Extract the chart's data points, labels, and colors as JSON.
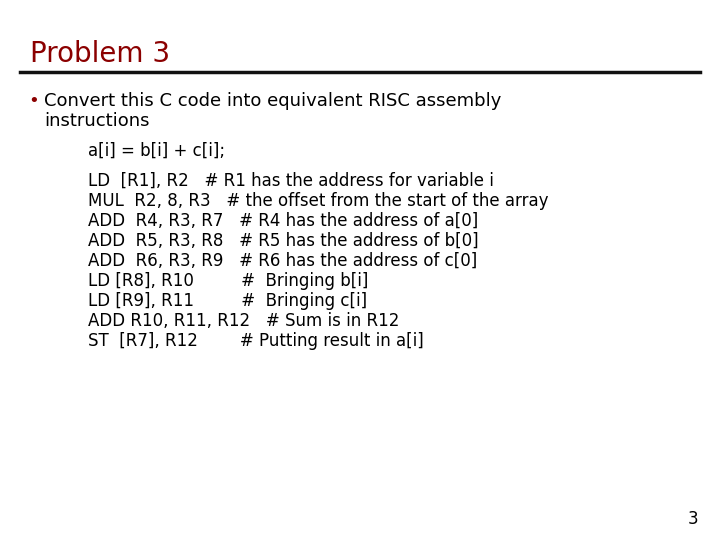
{
  "title": "Problem 3",
  "title_color": "#8B0000",
  "title_fontsize": 20,
  "bg_color": "#FFFFFF",
  "line_color": "#111111",
  "bullet_color": "#8B0000",
  "text_color": "#000000",
  "bullet_fontsize": 13,
  "code_line": "a[i] = b[i] + c[i];",
  "assembly_lines": [
    "LD  [R1], R2   # R1 has the address for variable i",
    "MUL  R2, 8, R3   # the offset from the start of the array",
    "ADD  R4, R3, R7   # R4 has the address of a[0]",
    "ADD  R5, R3, R8   # R5 has the address of b[0]",
    "ADD  R6, R3, R9   # R6 has the address of c[0]",
    "LD [R8], R10         #  Bringing b[i]",
    "LD [R9], R11         #  Bringing c[i]",
    "ADD R10, R11, R12   # Sum is in R12",
    "ST  [R7], R12        # Putting result in a[i]"
  ],
  "code_fontsize": 12,
  "asm_fontsize": 12,
  "slide_number": "3",
  "slide_number_fontsize": 12
}
